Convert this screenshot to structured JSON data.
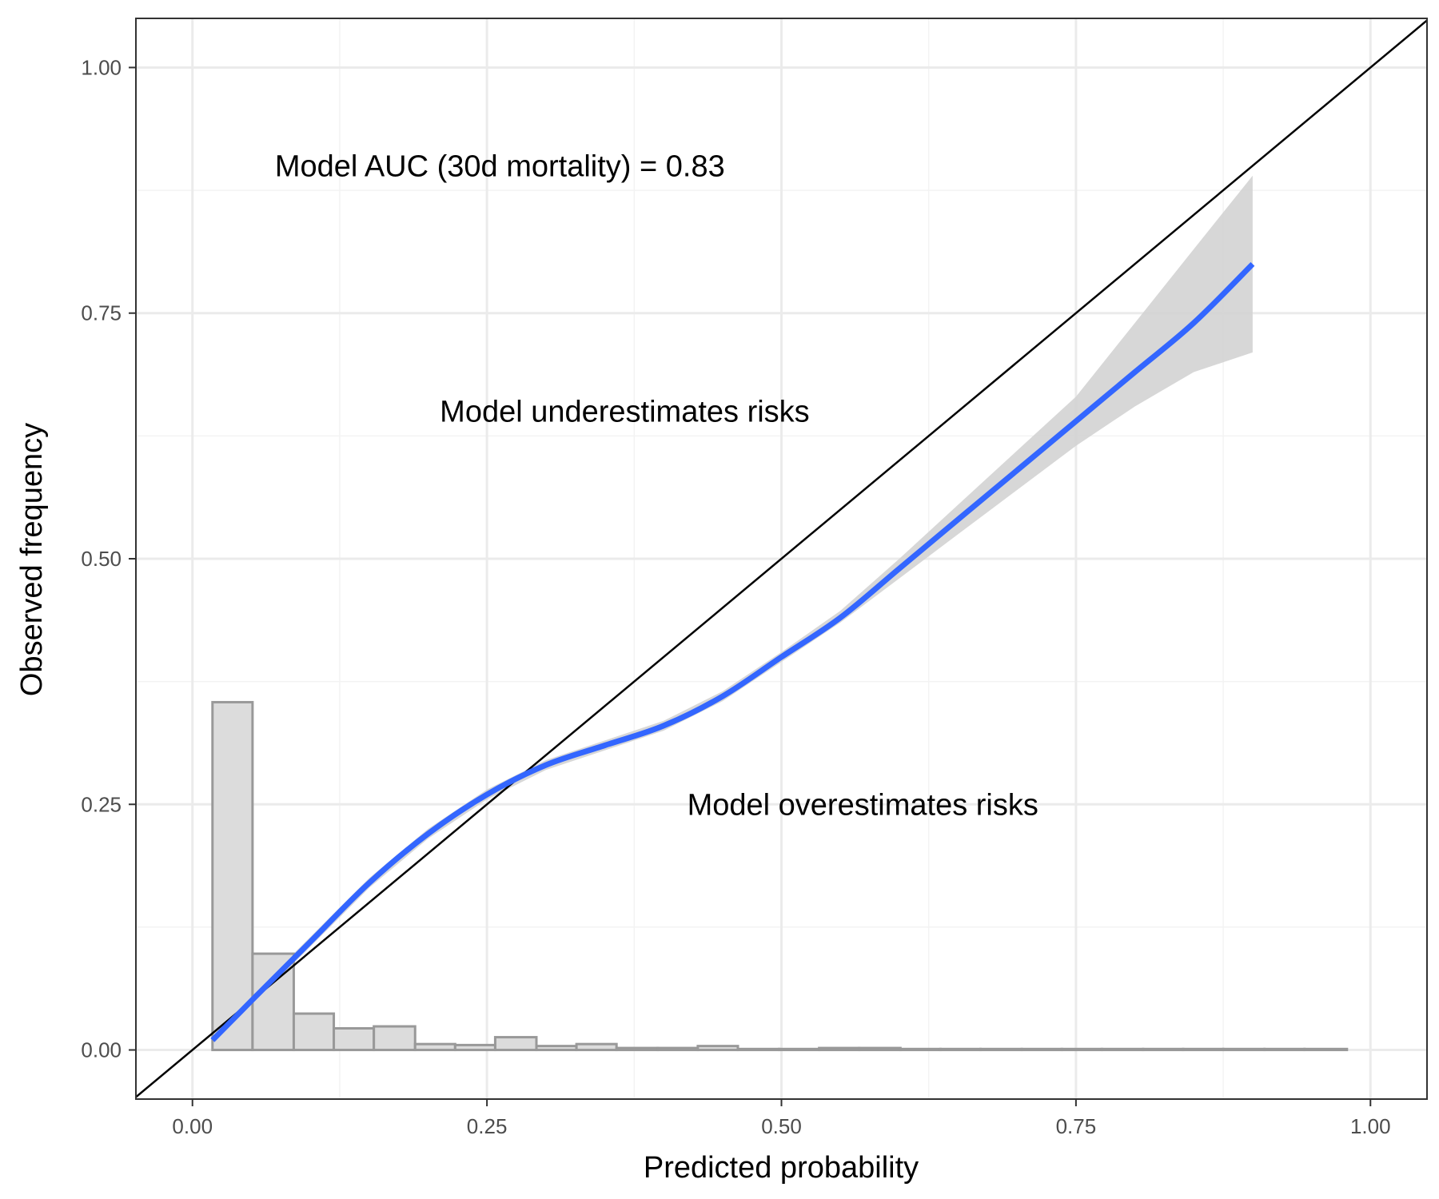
{
  "chart_data": {
    "type": "line",
    "xlabel": "Predicted probability",
    "ylabel": "Observed frequency",
    "xlim": [
      -0.048,
      1.048
    ],
    "ylim": [
      -0.05,
      1.05
    ],
    "x_ticks": [
      0,
      0.25,
      0.5,
      0.75,
      1.0
    ],
    "x_tick_labels": [
      "0.00",
      "0.25",
      "0.50",
      "0.75",
      "1.00"
    ],
    "y_ticks": [
      0,
      0.25,
      0.5,
      0.75,
      1.0
    ],
    "y_tick_labels": [
      "0.00",
      "0.25",
      "0.50",
      "0.75",
      "1.00"
    ],
    "grid": true,
    "annotations": [
      {
        "text": "Model AUC (30d mortality) = 0.83",
        "x": 0.07,
        "y": 0.9
      },
      {
        "text": "Model underestimates risks",
        "x": 0.21,
        "y": 0.65
      },
      {
        "text": "Model overestimates risks",
        "x": 0.42,
        "y": 0.25
      }
    ],
    "reference_line": {
      "x": [
        -0.05,
        1.05
      ],
      "y": [
        -0.05,
        1.05
      ],
      "color": "#000000"
    },
    "calibration_curve": {
      "color": "#3366ff",
      "x": [
        0.017,
        0.05,
        0.1,
        0.15,
        0.2,
        0.25,
        0.3,
        0.35,
        0.4,
        0.45,
        0.5,
        0.55,
        0.6,
        0.65,
        0.7,
        0.75,
        0.8,
        0.85,
        0.9
      ],
      "y": [
        0.01,
        0.05,
        0.11,
        0.17,
        0.22,
        0.26,
        0.29,
        0.31,
        0.33,
        0.36,
        0.4,
        0.44,
        0.49,
        0.54,
        0.59,
        0.64,
        0.69,
        0.74,
        0.8
      ]
    },
    "confidence_band": {
      "color": "#d3d3d3",
      "x": [
        0.017,
        0.05,
        0.1,
        0.15,
        0.2,
        0.25,
        0.3,
        0.35,
        0.4,
        0.45,
        0.5,
        0.55,
        0.6,
        0.65,
        0.7,
        0.75,
        0.8,
        0.85,
        0.9
      ],
      "lower": [
        0.005,
        0.045,
        0.105,
        0.165,
        0.215,
        0.255,
        0.285,
        0.305,
        0.325,
        0.355,
        0.395,
        0.435,
        0.48,
        0.525,
        0.57,
        0.615,
        0.655,
        0.69,
        0.71
      ],
      "upper": [
        0.015,
        0.055,
        0.115,
        0.175,
        0.225,
        0.265,
        0.295,
        0.315,
        0.335,
        0.365,
        0.405,
        0.447,
        0.5,
        0.555,
        0.61,
        0.665,
        0.74,
        0.815,
        0.89
      ]
    },
    "histogram": {
      "fill": "#dcdcdc",
      "stroke": "#999999",
      "bin_edges": [
        0.017,
        0.051,
        0.086,
        0.12,
        0.154,
        0.189,
        0.223,
        0.257,
        0.292,
        0.326,
        0.36,
        0.395,
        0.429,
        0.463,
        0.498,
        0.532,
        0.566,
        0.601,
        0.635,
        0.669,
        0.704,
        0.738,
        0.772,
        0.807,
        0.841,
        0.875,
        0.91,
        0.944,
        0.98
      ],
      "heights": [
        0.354,
        0.098,
        0.037,
        0.022,
        0.024,
        0.006,
        0.005,
        0.013,
        0.004,
        0.006,
        0.002,
        0.002,
        0.004,
        0.001,
        0.001,
        0.002,
        0.002,
        0.001,
        0.001,
        0.001,
        0.001,
        0.001,
        0.001,
        0.001,
        0.001,
        0.001,
        0.001,
        0.001
      ]
    }
  }
}
